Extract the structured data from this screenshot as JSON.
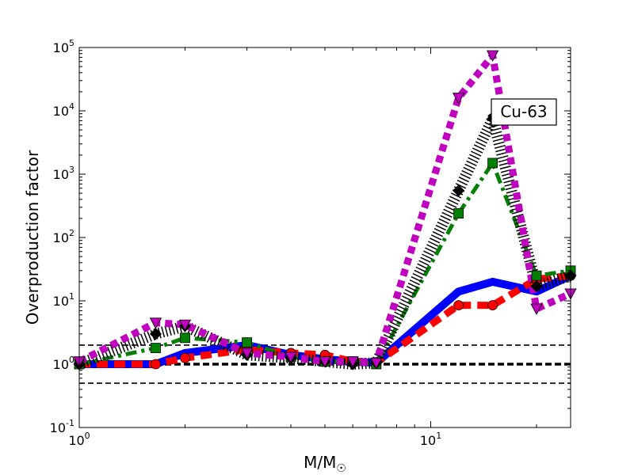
{
  "chart_data": {
    "type": "line",
    "title": "",
    "xlabel": "M/M",
    "xlabel_sub": "☉",
    "ylabel": "Overproduction factor",
    "xscale": "log",
    "yscale": "log",
    "xlim": [
      1,
      25
    ],
    "ylim": [
      0.1,
      100000
    ],
    "x_ticks": [
      {
        "value": 1,
        "base": "10",
        "exp": "0"
      },
      {
        "value": 10,
        "base": "10",
        "exp": "1"
      }
    ],
    "y_ticks": [
      {
        "value": 0.1,
        "base": "10",
        "exp": "-1"
      },
      {
        "value": 1,
        "base": "10",
        "exp": "0"
      },
      {
        "value": 10,
        "base": "10",
        "exp": "1"
      },
      {
        "value": 100,
        "base": "10",
        "exp": "2"
      },
      {
        "value": 1000,
        "base": "10",
        "exp": "3"
      },
      {
        "value": 10000,
        "base": "10",
        "exp": "4"
      },
      {
        "value": 100000,
        "base": "10",
        "exp": "5"
      }
    ],
    "annotation": "Cu-63",
    "reference_lines": [
      {
        "y": 2,
        "style": "dashed",
        "color": "#000000"
      },
      {
        "y": 1,
        "style": "dashed-bold",
        "color": "#000000"
      },
      {
        "y": 0.5,
        "style": "dashed",
        "color": "#000000"
      }
    ],
    "series": [
      {
        "color": "#0000ff",
        "style": "solid",
        "marker": "none",
        "x": [
          1,
          1.65,
          2,
          3,
          4,
          5,
          6,
          7,
          12,
          15,
          20,
          25
        ],
        "y": [
          1.0,
          1.0,
          1.5,
          2.0,
          1.4,
          1.2,
          1.1,
          1.05,
          14,
          20,
          14,
          25
        ]
      },
      {
        "color": "#ff0000",
        "style": "dashed",
        "marker": "circle",
        "x": [
          1,
          1.65,
          2,
          3,
          4,
          5,
          6,
          7,
          12,
          15,
          20,
          25
        ],
        "y": [
          1.0,
          1.0,
          1.25,
          1.7,
          1.5,
          1.4,
          1.1,
          1.05,
          8.5,
          8.5,
          22,
          25
        ]
      },
      {
        "color": "#008000",
        "style": "dashdot",
        "marker": "square",
        "x": [
          1,
          1.65,
          2,
          3,
          4,
          5,
          6,
          7,
          12,
          15,
          20,
          25
        ],
        "y": [
          1.0,
          1.8,
          2.6,
          2.2,
          1.3,
          1.1,
          1.1,
          1.0,
          240,
          1500,
          25,
          30
        ]
      },
      {
        "color": "#000000",
        "style": "dotted",
        "marker": "diamond",
        "x": [
          1,
          1.65,
          2,
          3,
          4,
          5,
          6,
          7,
          12,
          15,
          20,
          25
        ],
        "y": [
          1.0,
          3.0,
          4.0,
          1.4,
          1.25,
          1.1,
          1.0,
          1.05,
          550,
          7500,
          17,
          25
        ]
      },
      {
        "color": "#bf00bf",
        "style": "dotted-bold",
        "marker": "triangle-down",
        "x": [
          1,
          1.65,
          2,
          3,
          4,
          5,
          6,
          7,
          12,
          15,
          20,
          25
        ],
        "y": [
          1.1,
          4.5,
          4.2,
          1.5,
          1.3,
          1.1,
          1.1,
          1.05,
          16000,
          75000,
          7.5,
          13
        ]
      }
    ]
  }
}
